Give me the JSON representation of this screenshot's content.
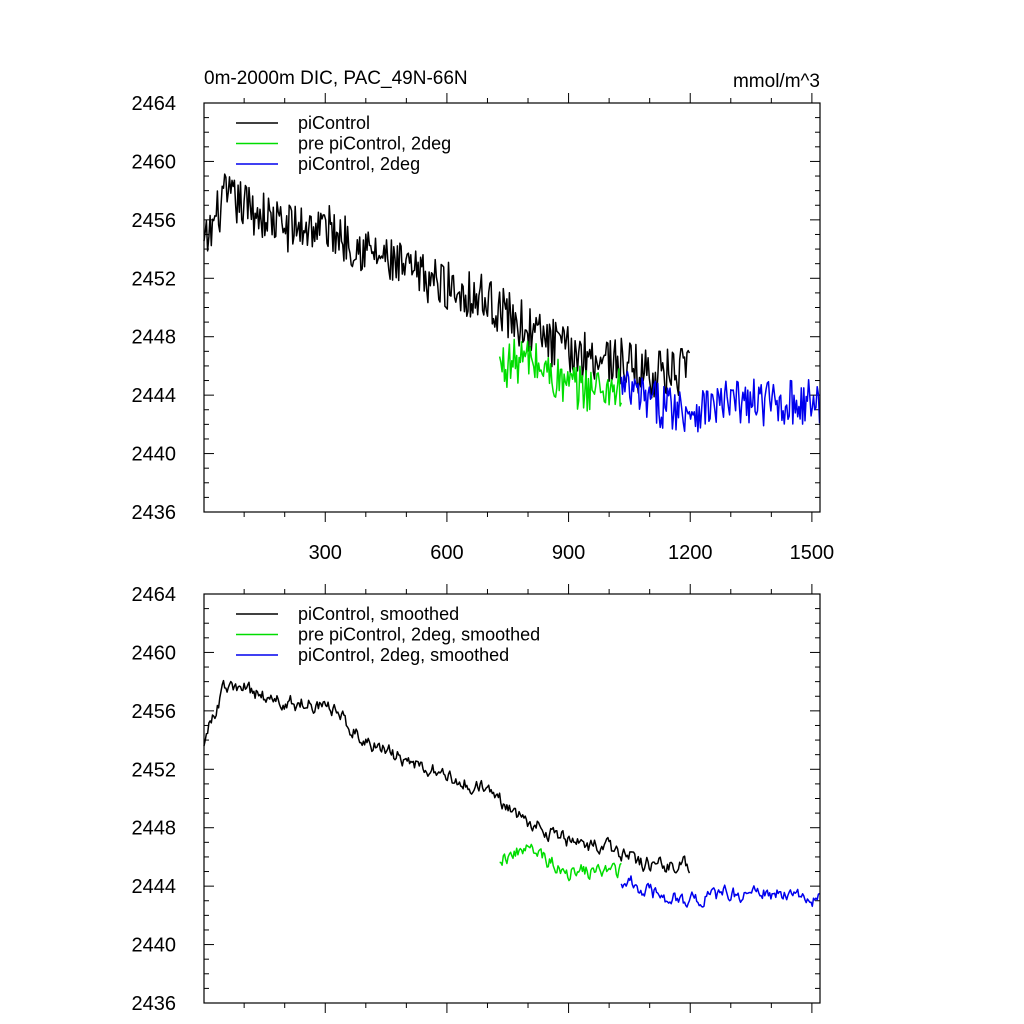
{
  "chart_data": [
    {
      "type": "line",
      "title_left": "0m-2000m DIC, PAC_49N-66N",
      "title_right": "mmol/m^3",
      "xlim": [
        1,
        1520
      ],
      "ylim": [
        2436,
        2464
      ],
      "yticks": [
        2436,
        2440,
        2444,
        2448,
        2452,
        2456,
        2460,
        2464
      ],
      "xticks": [
        300,
        600,
        900,
        1200,
        1500
      ],
      "xtick_labels_visible": true,
      "legend_position": "top-left",
      "series": [
        {
          "name": "piControl",
          "color": "#000000",
          "x_start": 1,
          "x_end": 1200,
          "anchors": [
            [
              1,
              2454
            ],
            [
              50,
              2457.5
            ],
            [
              100,
              2457
            ],
            [
              200,
              2455.5
            ],
            [
              300,
              2455.5
            ],
            [
              400,
              2454
            ],
            [
              500,
              2452.5
            ],
            [
              600,
              2451.5
            ],
            [
              700,
              2450.5
            ],
            [
              800,
              2448.5
            ],
            [
              900,
              2447
            ],
            [
              1000,
              2446.5
            ],
            [
              1100,
              2445.5
            ],
            [
              1200,
              2445.5
            ]
          ],
          "noise": 1.7
        },
        {
          "name": "pre piControl, 2deg",
          "color": "#00dd00",
          "x_start": 730,
          "x_end": 1030,
          "anchors": [
            [
              730,
              2446
            ],
            [
              800,
              2446.5
            ],
            [
              900,
              2444.5
            ],
            [
              1000,
              2444.5
            ],
            [
              1030,
              2444.5
            ]
          ],
          "noise": 1.6
        },
        {
          "name": "piControl, 2deg",
          "color": "#0000ee",
          "x_start": 1030,
          "x_end": 1520,
          "anchors": [
            [
              1030,
              2444.5
            ],
            [
              1100,
              2443.5
            ],
            [
              1200,
              2443
            ],
            [
              1300,
              2443.5
            ],
            [
              1400,
              2443.5
            ],
            [
              1520,
              2443.5
            ]
          ],
          "noise": 1.6
        }
      ]
    },
    {
      "type": "line",
      "xlim": [
        1,
        1520
      ],
      "ylim": [
        2436,
        2464
      ],
      "yticks": [
        2436,
        2440,
        2444,
        2448,
        2452,
        2456,
        2460,
        2464
      ],
      "xticks": [
        300,
        600,
        900,
        1200,
        1500
      ],
      "xtick_labels_visible": false,
      "legend_position": "top-left",
      "series": [
        {
          "name": "piControl, smoothed",
          "color": "#000000",
          "x_start": 1,
          "x_end": 1200,
          "anchors": [
            [
              1,
              2454
            ],
            [
              50,
              2457.5
            ],
            [
              100,
              2457.5
            ],
            [
              200,
              2456.5
            ],
            [
              300,
              2456.5
            ],
            [
              400,
              2454
            ],
            [
              500,
              2452.5
            ],
            [
              600,
              2451.5
            ],
            [
              700,
              2450.5
            ],
            [
              800,
              2448.5
            ],
            [
              900,
              2447
            ],
            [
              1000,
              2446.5
            ],
            [
              1100,
              2445.5
            ],
            [
              1200,
              2445.5
            ]
          ],
          "noise": 1.0
        },
        {
          "name": "pre piControl, 2deg, smoothed",
          "color": "#00dd00",
          "x_start": 730,
          "x_end": 1030,
          "anchors": [
            [
              730,
              2446
            ],
            [
              800,
              2446.5
            ],
            [
              900,
              2445
            ],
            [
              1000,
              2445
            ],
            [
              1030,
              2445
            ]
          ],
          "noise": 1.0
        },
        {
          "name": "piControl, 2deg, smoothed",
          "color": "#0000ee",
          "x_start": 1030,
          "x_end": 1520,
          "anchors": [
            [
              1030,
              2444.5
            ],
            [
              1100,
              2443.5
            ],
            [
              1200,
              2443
            ],
            [
              1300,
              2443.5
            ],
            [
              1400,
              2443.5
            ],
            [
              1520,
              2443
            ]
          ],
          "noise": 1.0
        }
      ]
    }
  ]
}
